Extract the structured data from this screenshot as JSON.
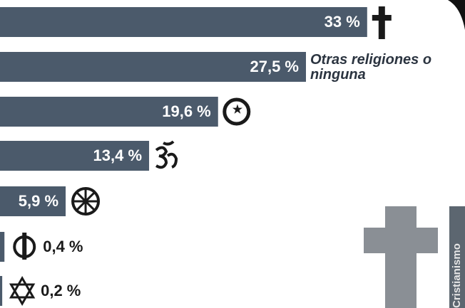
{
  "chart_data": {
    "type": "bar",
    "orientation": "horizontal",
    "categories": [
      null,
      "Otras religiones o ninguna",
      null,
      null,
      null,
      null,
      null
    ],
    "values": [
      33,
      27.5,
      19.6,
      13.4,
      5.9,
      0.4,
      0.2
    ],
    "value_labels": [
      "33 %",
      "27,5 %",
      "19,6 %",
      "13,4 %",
      "5,9 %",
      "0,4 %",
      "0,2 %"
    ],
    "color": "#4b5a6b",
    "xlim": [
      0,
      40
    ],
    "annotation": "Cristianismo"
  }
}
